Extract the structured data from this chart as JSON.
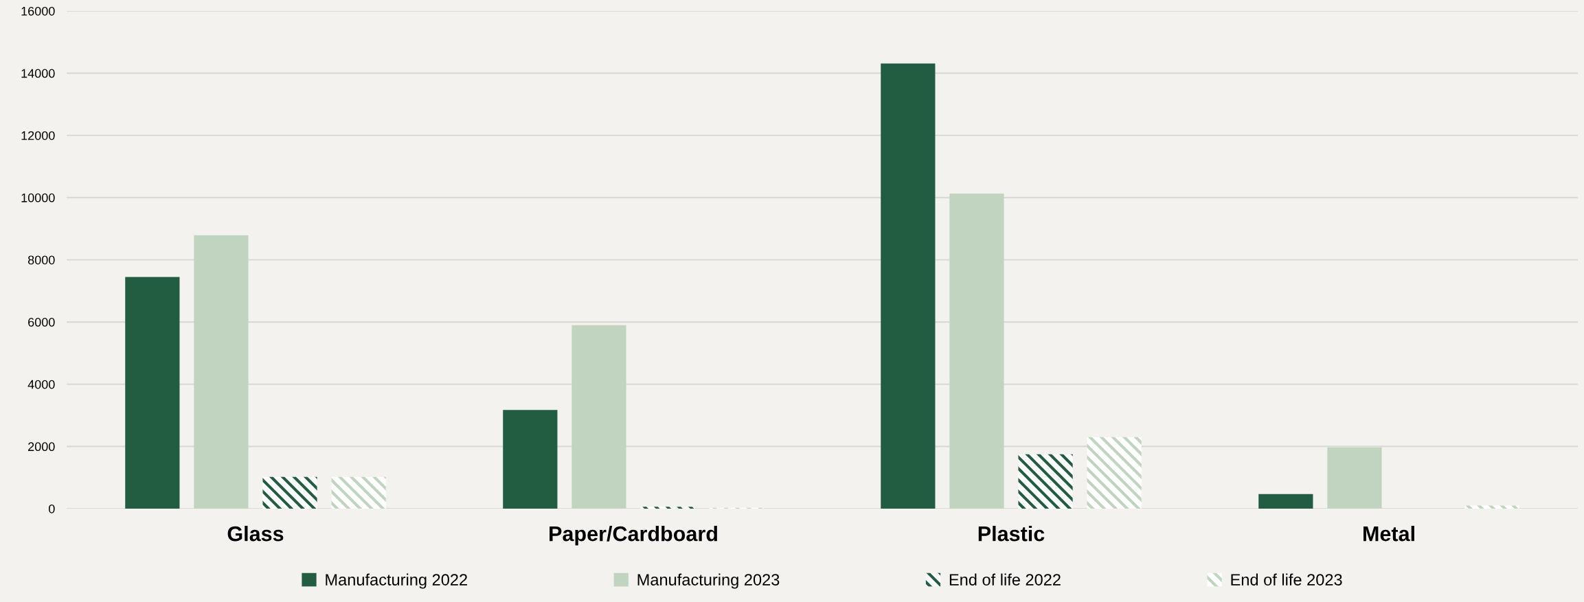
{
  "chart_data": {
    "type": "bar",
    "categories": [
      "Glass",
      "Paper/Cardboard",
      "Plastic",
      "Metal"
    ],
    "series": [
      {
        "name": "Manufacturing 2022",
        "color": "#225c41",
        "values": [
          7450,
          3170,
          14310,
          470
        ]
      },
      {
        "name": "Manufacturing 2023",
        "color": "#c0d4c0",
        "values": [
          8790,
          5900,
          10130,
          1970
        ]
      },
      {
        "name": "End of life 2022",
        "color": "#225c41",
        "values": [
          1020,
          60,
          1750,
          0
        ]
      },
      {
        "name": "End of life 2023",
        "color": "#c0d4c0",
        "values": [
          1020,
          30,
          2300,
          100
        ]
      }
    ],
    "ylim": [
      0,
      16000
    ],
    "yticks": [
      0,
      2000,
      4000,
      6000,
      8000,
      10000,
      12000,
      14000,
      16000
    ],
    "grid": "y",
    "legend": "bottom"
  }
}
